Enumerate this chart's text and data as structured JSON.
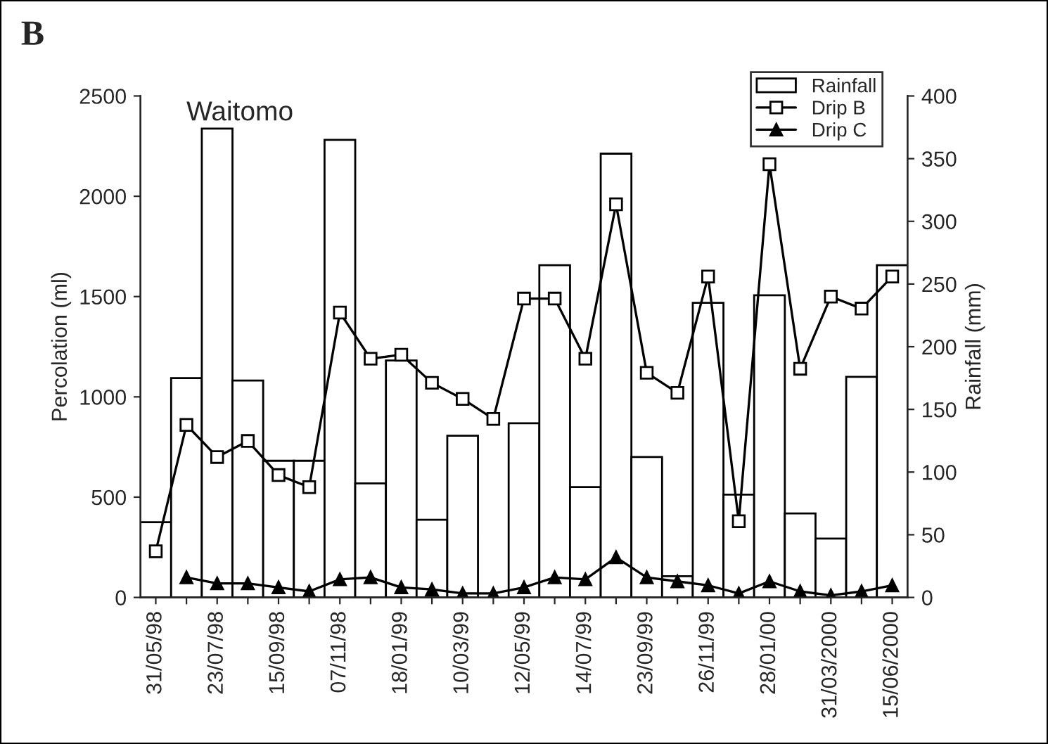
{
  "chart_data": {
    "type": "bar",
    "title": "B",
    "subtitle": "Waitomo",
    "ylabel": "Percolation (ml)",
    "y2label": "Rainfall (mm)",
    "categories": [
      "31/05/98",
      null,
      "23/07/98",
      null,
      "15/09/98",
      null,
      "07/11/98",
      null,
      "18/01/99",
      null,
      "10/03/99",
      null,
      "12/05/99",
      null,
      "14/07/99",
      null,
      "23/09/99",
      null,
      "26/11/99",
      null,
      "28/01/00",
      null,
      "31/03/2000",
      null,
      "15/06/2000"
    ],
    "series": [
      {
        "name": "Rainfall",
        "axis": "y2",
        "color": "#ffffff",
        "values": [
          60,
          175,
          374,
          173,
          109,
          109,
          365,
          91,
          189,
          62,
          129,
          null,
          139,
          265,
          88,
          354,
          112,
          17,
          235,
          82,
          241,
          67,
          47,
          176,
          265
        ]
      },
      {
        "name": "Drip B",
        "type": "line",
        "color": "#000000",
        "marker": "square",
        "values": [
          230,
          860,
          700,
          780,
          610,
          550,
          1420,
          1190,
          1210,
          1070,
          990,
          890,
          1490,
          1490,
          1190,
          1960,
          1120,
          1020,
          1600,
          380,
          2160,
          1140,
          1500,
          1440,
          1600
        ]
      },
      {
        "name": "Drip C",
        "type": "line",
        "color": "#000000",
        "marker": "triangle",
        "values": [
          null,
          100,
          70,
          70,
          50,
          30,
          90,
          100,
          50,
          40,
          20,
          20,
          50,
          100,
          90,
          200,
          100,
          80,
          60,
          20,
          80,
          30,
          10,
          30,
          60
        ]
      }
    ],
    "ylim": [
      0,
      2500
    ],
    "yticks": [
      0,
      500,
      1000,
      1500,
      2000,
      2500
    ],
    "y2lim": [
      0,
      400
    ],
    "y2ticks": [
      0,
      50,
      100,
      150,
      200,
      250,
      300,
      350,
      400
    ],
    "grid": false,
    "legend": "top right"
  }
}
